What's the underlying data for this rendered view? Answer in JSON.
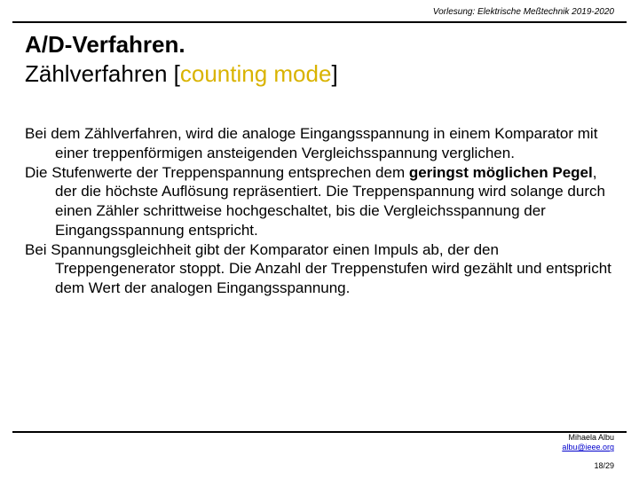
{
  "header": {
    "course_prefix": "Vorlesung: ",
    "course_italic": "Elektrische Meßtechnik 2019-2020"
  },
  "title": {
    "line1": "A/D-Verfahren.",
    "line2_plain": "Zählverfahren [",
    "line2_colored": "counting mode",
    "line2_close": "]"
  },
  "body": {
    "p1": "Bei dem Zählverfahren, wird die analoge Eingangsspannung in einem Komparator mit einer treppenförmigen ansteigenden Vergleichsspannung verglichen.",
    "p2_a": "Die Stufenwerte der Treppenspannung entsprechen dem ",
    "p2_b_bold": "geringst möglichen Pegel",
    "p2_c": ", der die höchste Auflösung repräsentiert. Die Treppenspannung wird solange durch einen Zähler schrittweise hochgeschaltet, bis die Vergleichsspannung der Eingangsspannung entspricht.",
    "p3": "Bei Spannungsgleichheit gibt der Komparator einen Impuls ab, der den Treppengenerator stoppt. Die Anzahl der Treppenstufen wird gezählt und entspricht dem Wert der analogen Eingangsspannung."
  },
  "footer": {
    "author": "Mihaela Albu",
    "email": "albu@ieee.org",
    "page": "18/29"
  },
  "colors": {
    "accent": "#d9b300",
    "link": "#0000cc",
    "text": "#000000",
    "background": "#ffffff"
  }
}
